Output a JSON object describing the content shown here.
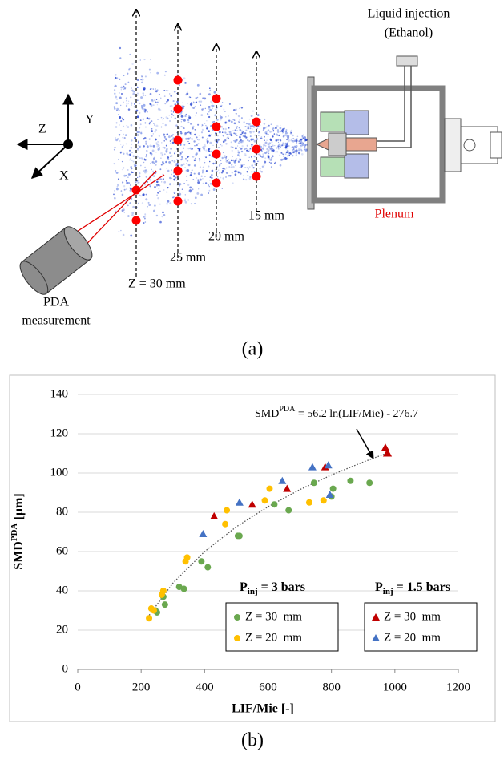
{
  "diagram": {
    "axes": {
      "z": "Z",
      "y": "Y",
      "x": "X"
    },
    "positions": [
      "Z = 30 mm",
      "25 mm",
      "20 mm",
      "15 mm"
    ],
    "injection": [
      "Liquid injection",
      "(Ethanol)"
    ],
    "plenum": "Plenum",
    "pda": [
      "PDA",
      "measurement"
    ],
    "caption": "(a)"
  },
  "chart_data": {
    "type": "scatter",
    "caption": "(b)",
    "annotation": [
      "SMD",
      "PDA",
      " = 56.2 ln(LIF/Mie) - 276.7"
    ],
    "xlabel": "LIF/Mie [-]",
    "ylabel": [
      "SMD",
      "PDA",
      " [µm]"
    ],
    "xlim": [
      0,
      1200
    ],
    "xticks": [
      0,
      200,
      400,
      600,
      800,
      1000,
      1200
    ],
    "ylim": [
      0,
      140
    ],
    "yticks": [
      0,
      20,
      40,
      60,
      80,
      100,
      120,
      140
    ],
    "grid": true,
    "legend_groups": [
      {
        "title": [
          "P",
          "inj",
          " = 3 bars"
        ]
      },
      {
        "title": [
          "P",
          "inj",
          " = 1.5 bars"
        ]
      }
    ],
    "series": [
      {
        "name": "Z = 30  mm",
        "group": 0,
        "marker": "circle",
        "color": "#6aa84f",
        "x": [
          245,
          250,
          270,
          275,
          320,
          335,
          390,
          410,
          505,
          510,
          620,
          665,
          745,
          800,
          805,
          860,
          920
        ],
        "values": [
          30,
          29,
          37,
          33,
          42,
          41,
          55,
          52,
          68,
          68,
          84,
          81,
          95,
          88,
          92,
          96,
          95
        ]
      },
      {
        "name": "Z = 20  mm",
        "group": 0,
        "marker": "circle",
        "color": "#ffc000",
        "x": [
          225,
          232,
          240,
          265,
          270,
          340,
          345,
          465,
          470,
          590,
          605,
          730,
          775
        ],
        "values": [
          26,
          31,
          30,
          38,
          40,
          55,
          57,
          74,
          81,
          86,
          92,
          85,
          86
        ]
      },
      {
        "name": "Z = 30  mm",
        "group": 1,
        "marker": "triangle",
        "color": "#c00000",
        "x": [
          430,
          550,
          660,
          780,
          970,
          975,
          978
        ],
        "values": [
          78,
          84,
          92,
          103,
          113,
          110,
          110
        ]
      },
      {
        "name": "Z = 20  mm",
        "group": 1,
        "marker": "triangle",
        "color": "#4472c4",
        "x": [
          395,
          510,
          645,
          740,
          790,
          795
        ],
        "values": [
          69,
          85,
          96,
          103,
          104,
          89
        ]
      }
    ],
    "trend": {
      "x": [
        220,
        300,
        400,
        500,
        600,
        700,
        800,
        900,
        980
      ],
      "values": [
        26.4,
        43.9,
        60.0,
        72.6,
        82.8,
        91.5,
        99.0,
        105.6,
        110.4
      ]
    }
  }
}
